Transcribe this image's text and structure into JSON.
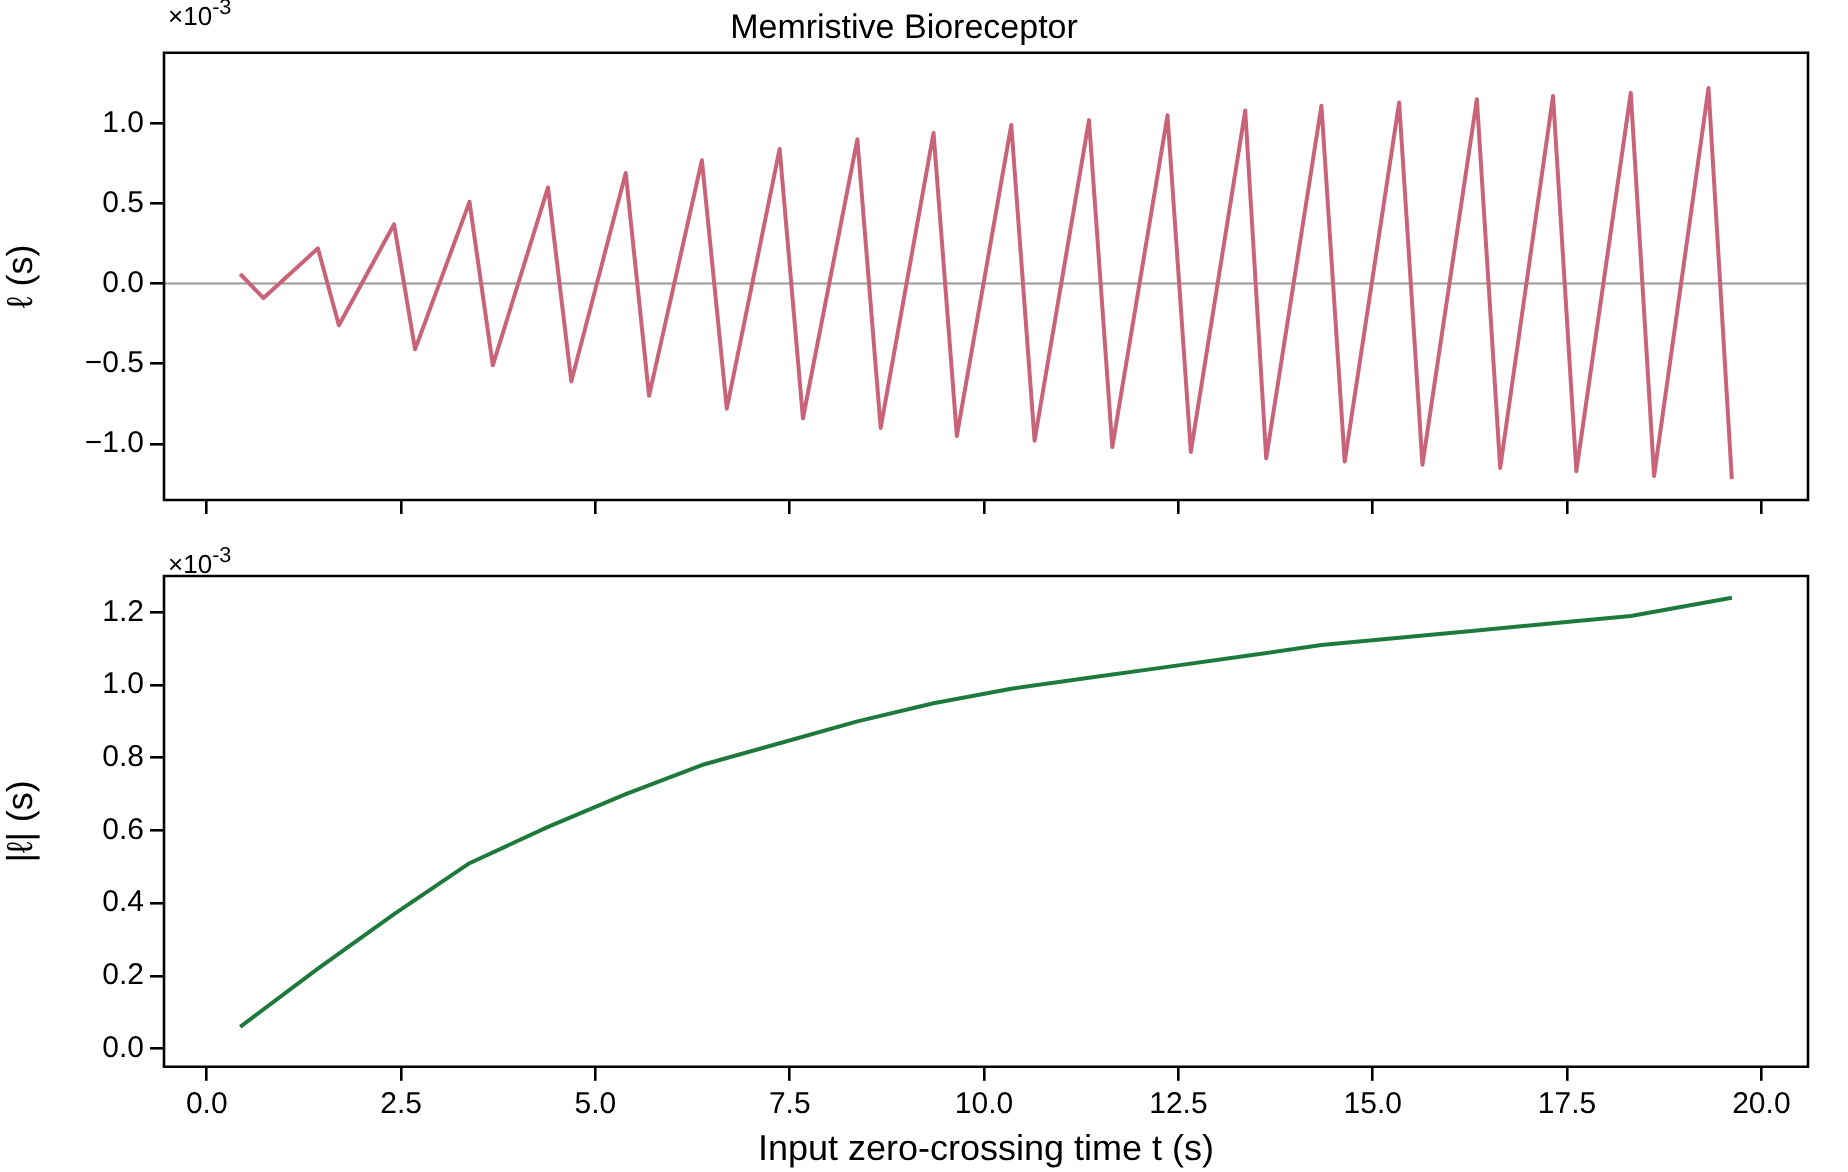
{
  "chart_data": [
    {
      "type": "line",
      "title": "Memristive Bioreceptor",
      "ylabel": "ℓ (s)",
      "annotations": [
        "×10$^{-3}$"
      ],
      "color": "#c9637a",
      "x": [
        0.43,
        0.73,
        1.43,
        1.7,
        2.41,
        2.68,
        3.38,
        3.68,
        4.39,
        4.69,
        5.39,
        5.69,
        6.37,
        6.69,
        7.37,
        7.67,
        8.37,
        8.67,
        9.35,
        9.65,
        10.35,
        10.65,
        11.35,
        11.65,
        12.36,
        12.66,
        13.36,
        13.63,
        14.34,
        14.64,
        15.34,
        15.64,
        16.34,
        16.64,
        17.32,
        17.62,
        18.32,
        18.62,
        19.32,
        19.62
      ],
      "values": [
        0.06,
        -0.09,
        0.22,
        -0.26,
        0.37,
        -0.41,
        0.51,
        -0.51,
        0.6,
        -0.61,
        0.69,
        -0.7,
        0.77,
        -0.78,
        0.84,
        -0.84,
        0.9,
        -0.9,
        0.94,
        -0.95,
        0.99,
        -0.98,
        1.02,
        -1.02,
        1.05,
        -1.05,
        1.08,
        -1.09,
        1.11,
        -1.11,
        1.13,
        -1.13,
        1.15,
        -1.15,
        1.17,
        -1.17,
        1.19,
        -1.2,
        1.22,
        -1.22
      ],
      "xlim": [
        -0.55,
        20.6
      ],
      "xticks": [
        {
          "value": 0,
          "label": null
        },
        {
          "value": 2.5,
          "label": null
        },
        {
          "value": 5,
          "label": null
        },
        {
          "value": 7.5,
          "label": null
        },
        {
          "value": 10,
          "label": null
        },
        {
          "value": 12.5,
          "label": null
        },
        {
          "value": 15,
          "label": null
        },
        {
          "value": 17.5,
          "label": null
        },
        {
          "value": 20,
          "label": null
        }
      ],
      "ylim": [
        -1.35,
        1.44
      ],
      "yticks": [
        {
          "value": -1,
          "label": "−1.0"
        },
        {
          "value": -0.5,
          "label": "−0.5"
        },
        {
          "value": 0,
          "label": "0.0"
        },
        {
          "value": 0.5,
          "label": "0.5"
        },
        {
          "value": 1,
          "label": "1.0"
        }
      ],
      "ref_lines": [
        {
          "axis": "y",
          "value": 0,
          "color": "#999999"
        }
      ],
      "tick_labels": "y"
    },
    {
      "type": "line",
      "xlabel": "Input zero-crossing time t (s)",
      "ylabel": "|ℓ| (s)",
      "annotations": [
        "×10$^{-3}$"
      ],
      "color": "#1e7a3c",
      "x": [
        0.43,
        1.43,
        2.41,
        3.38,
        4.39,
        5.39,
        6.37,
        7.37,
        8.37,
        9.35,
        10.35,
        11.35,
        12.36,
        13.36,
        14.34,
        15.34,
        16.34,
        17.32,
        18.32,
        19.62
      ],
      "values": [
        0.06,
        0.22,
        0.37,
        0.51,
        0.61,
        0.7,
        0.78,
        0.84,
        0.9,
        0.95,
        0.99,
        1.02,
        1.05,
        1.08,
        1.11,
        1.13,
        1.15,
        1.17,
        1.19,
        1.24
      ],
      "xlim": [
        -0.55,
        20.6
      ],
      "xticks": [
        {
          "value": 0,
          "label": "0.0"
        },
        {
          "value": 2.5,
          "label": "2.5"
        },
        {
          "value": 5,
          "label": "5.0"
        },
        {
          "value": 7.5,
          "label": "7.5"
        },
        {
          "value": 10,
          "label": "10.0"
        },
        {
          "value": 12.5,
          "label": "12.5"
        },
        {
          "value": 15,
          "label": "15.0"
        },
        {
          "value": 17.5,
          "label": "17.5"
        },
        {
          "value": 20,
          "label": "20.0"
        }
      ],
      "ylim": [
        -0.05,
        1.3
      ],
      "yticks": [
        {
          "value": 0,
          "label": "0.0"
        },
        {
          "value": 0.2,
          "label": "0.2"
        },
        {
          "value": 0.4,
          "label": "0.4"
        },
        {
          "value": 0.6,
          "label": "0.6"
        },
        {
          "value": 0.8,
          "label": "0.8"
        },
        {
          "value": 1,
          "label": "1.0"
        },
        {
          "value": 1.2,
          "label": "1.2"
        }
      ]
    }
  ]
}
